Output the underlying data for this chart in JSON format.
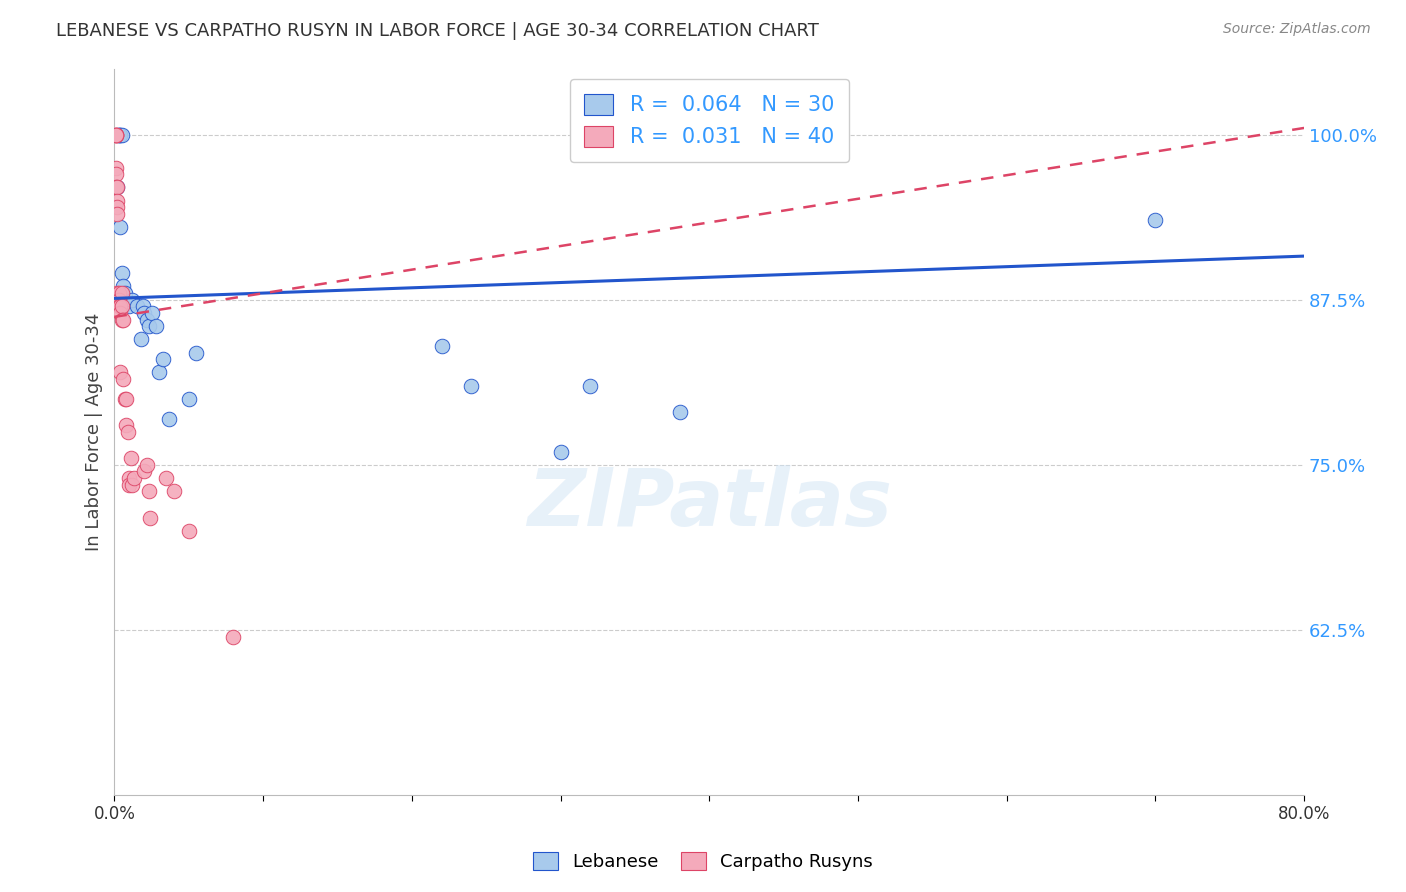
{
  "title": "LEBANESE VS CARPATHO RUSYN IN LABOR FORCE | AGE 30-34 CORRELATION CHART",
  "source": "Source: ZipAtlas.com",
  "ylabel": "In Labor Force | Age 30-34",
  "watermark": "ZIPatlas",
  "xlim": [
    0.0,
    0.8
  ],
  "ylim": [
    0.5,
    1.05
  ],
  "xticks": [
    0.0,
    0.1,
    0.2,
    0.3,
    0.4,
    0.5,
    0.6,
    0.7,
    0.8
  ],
  "xticklabels": [
    "0.0%",
    "",
    "",
    "",
    "",
    "",
    "",
    "",
    "80.0%"
  ],
  "ytick_positions": [
    0.625,
    0.75,
    0.875,
    1.0
  ],
  "ytick_labels": [
    "62.5%",
    "75.0%",
    "87.5%",
    "100.0%"
  ],
  "legend_R_blue": "0.064",
  "legend_N_blue": "30",
  "legend_R_pink": "0.031",
  "legend_N_pink": "40",
  "blue_color": "#A8CAEC",
  "pink_color": "#F4AABB",
  "blue_line_color": "#2255CC",
  "pink_line_color": "#DD4466",
  "title_color": "#333333",
  "source_color": "#888888",
  "axis_label_color": "#444444",
  "ytick_color": "#3399FF",
  "blue_scatter_x": [
    0.002,
    0.003,
    0.003,
    0.004,
    0.004,
    0.005,
    0.005,
    0.006,
    0.007,
    0.01,
    0.012,
    0.015,
    0.018,
    0.019,
    0.02,
    0.022,
    0.023,
    0.025,
    0.028,
    0.03,
    0.033,
    0.037,
    0.05,
    0.055,
    0.22,
    0.24,
    0.3,
    0.32,
    0.38,
    0.7
  ],
  "blue_scatter_y": [
    0.96,
    1.0,
    1.0,
    1.0,
    0.93,
    1.0,
    0.895,
    0.885,
    0.88,
    0.87,
    0.875,
    0.87,
    0.845,
    0.87,
    0.865,
    0.86,
    0.855,
    0.865,
    0.855,
    0.82,
    0.83,
    0.785,
    0.8,
    0.835,
    0.84,
    0.81,
    0.76,
    0.81,
    0.79,
    0.935
  ],
  "pink_scatter_x": [
    0.001,
    0.001,
    0.001,
    0.001,
    0.001,
    0.001,
    0.001,
    0.002,
    0.002,
    0.002,
    0.002,
    0.002,
    0.003,
    0.003,
    0.003,
    0.004,
    0.004,
    0.004,
    0.005,
    0.005,
    0.005,
    0.006,
    0.006,
    0.007,
    0.008,
    0.008,
    0.009,
    0.01,
    0.01,
    0.011,
    0.012,
    0.013,
    0.02,
    0.022,
    0.023,
    0.024,
    0.035,
    0.04,
    0.05,
    0.08
  ],
  "pink_scatter_y": [
    1.0,
    1.0,
    1.0,
    1.0,
    0.975,
    0.97,
    0.96,
    0.96,
    0.95,
    0.945,
    0.94,
    0.88,
    0.88,
    0.875,
    0.87,
    0.87,
    0.865,
    0.82,
    0.88,
    0.87,
    0.86,
    0.86,
    0.815,
    0.8,
    0.8,
    0.78,
    0.775,
    0.74,
    0.735,
    0.755,
    0.735,
    0.74,
    0.745,
    0.75,
    0.73,
    0.71,
    0.74,
    0.73,
    0.7,
    0.62
  ],
  "grid_color": "#CCCCCC",
  "background_color": "#FFFFFF",
  "trendline_blue_x0": 0.0,
  "trendline_blue_y0": 0.876,
  "trendline_blue_x1": 0.8,
  "trendline_blue_y1": 0.908,
  "trendline_pink_x0": 0.0,
  "trendline_pink_y0": 0.862,
  "trendline_pink_x1": 0.8,
  "trendline_pink_y1": 1.005
}
